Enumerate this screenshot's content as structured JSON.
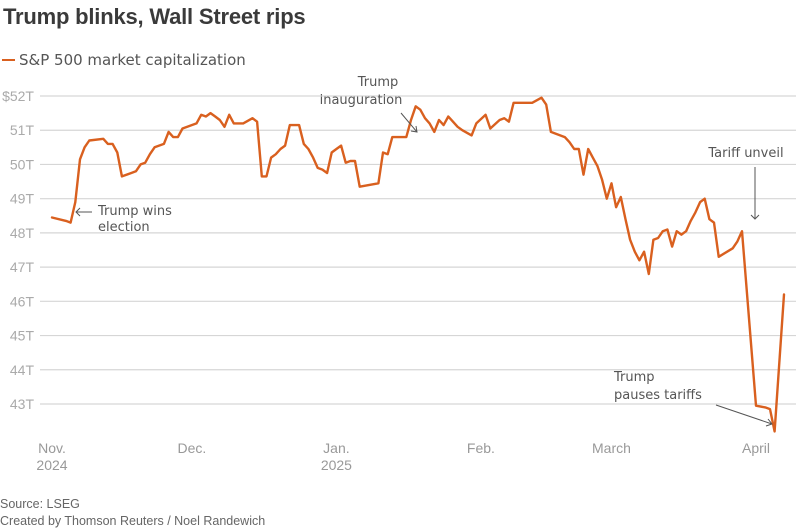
{
  "chart_data": {
    "type": "line",
    "title": "Trump blinks, Wall Street rips",
    "legend": [
      {
        "name": "S&P 500 market capitalization",
        "color": "#d9601f"
      }
    ],
    "legend_position": "top-left",
    "xlabel": "",
    "ylabel": "",
    "grid": true,
    "ylim": [
      42.3,
      52.2
    ],
    "yticks": [
      {
        "value": 52,
        "label": "$52T"
      },
      {
        "value": 51,
        "label": "51T"
      },
      {
        "value": 50,
        "label": "50T"
      },
      {
        "value": 49,
        "label": "49T"
      },
      {
        "value": 48,
        "label": "48T"
      },
      {
        "value": 47,
        "label": "47T"
      },
      {
        "value": 46,
        "label": "46T"
      },
      {
        "value": 45,
        "label": "45T"
      },
      {
        "value": 44,
        "label": "44T"
      },
      {
        "value": 43,
        "label": "43T"
      }
    ],
    "x_unit": "days since Nov. 1, 2024",
    "xlim": [
      -2,
      162
    ],
    "xticks": [
      {
        "value": 0,
        "label": [
          "Nov.",
          "2024"
        ]
      },
      {
        "value": 30,
        "label": [
          "Dec."
        ]
      },
      {
        "value": 61,
        "label": [
          "Jan.",
          "2025"
        ]
      },
      {
        "value": 92,
        "label": [
          "Feb."
        ]
      },
      {
        "value": 120,
        "label": [
          "March"
        ]
      },
      {
        "value": 151,
        "label": [
          "April"
        ]
      }
    ],
    "series": [
      {
        "name": "S&P 500 market capitalization",
        "color": "#d9601f",
        "points": [
          [
            0,
            48.45
          ],
          [
            3,
            48.35
          ],
          [
            4,
            48.3
          ],
          [
            5,
            48.9
          ],
          [
            6,
            50.15
          ],
          [
            7,
            50.5
          ],
          [
            8,
            50.7
          ],
          [
            11,
            50.75
          ],
          [
            12,
            50.6
          ],
          [
            13,
            50.6
          ],
          [
            14,
            50.35
          ],
          [
            15,
            49.65
          ],
          [
            17,
            49.75
          ],
          [
            18,
            49.8
          ],
          [
            19,
            50.0
          ],
          [
            20,
            50.05
          ],
          [
            21,
            50.3
          ],
          [
            22,
            50.5
          ],
          [
            24,
            50.6
          ],
          [
            25,
            50.95
          ],
          [
            26,
            50.8
          ],
          [
            27,
            50.8
          ],
          [
            28,
            51.05
          ],
          [
            31,
            51.2
          ],
          [
            32,
            51.45
          ],
          [
            33,
            51.4
          ],
          [
            34,
            51.5
          ],
          [
            35,
            51.4
          ],
          [
            36,
            51.3
          ],
          [
            37,
            51.1
          ],
          [
            38,
            51.45
          ],
          [
            39,
            51.2
          ],
          [
            41,
            51.2
          ],
          [
            43,
            51.35
          ],
          [
            44,
            51.25
          ],
          [
            45,
            49.65
          ],
          [
            46,
            49.65
          ],
          [
            47,
            50.2
          ],
          [
            48,
            50.3
          ],
          [
            49,
            50.45
          ],
          [
            50,
            50.55
          ],
          [
            51,
            51.15
          ],
          [
            53,
            51.15
          ],
          [
            54,
            50.6
          ],
          [
            55,
            50.45
          ],
          [
            56,
            50.2
          ],
          [
            57,
            49.9
          ],
          [
            58,
            49.85
          ],
          [
            59,
            49.75
          ],
          [
            60,
            50.35
          ],
          [
            61,
            50.45
          ],
          [
            62,
            50.55
          ],
          [
            63,
            50.05
          ],
          [
            64,
            50.1
          ],
          [
            65,
            50.1
          ],
          [
            66,
            49.35
          ],
          [
            70,
            49.45
          ],
          [
            71,
            50.35
          ],
          [
            72,
            50.3
          ],
          [
            73,
            50.8
          ],
          [
            76,
            50.8
          ],
          [
            77,
            51.3
          ],
          [
            78,
            51.7
          ],
          [
            79,
            51.6
          ],
          [
            80,
            51.35
          ],
          [
            81,
            51.2
          ],
          [
            82,
            50.95
          ],
          [
            83,
            51.3
          ],
          [
            84,
            51.15
          ],
          [
            85,
            51.4
          ],
          [
            86,
            51.25
          ],
          [
            87,
            51.1
          ],
          [
            88,
            51.0
          ],
          [
            90,
            50.85
          ],
          [
            91,
            51.2
          ],
          [
            93,
            51.45
          ],
          [
            94,
            51.05
          ],
          [
            96,
            51.3
          ],
          [
            97,
            51.35
          ],
          [
            98,
            51.25
          ],
          [
            99,
            51.8
          ],
          [
            103,
            51.8
          ],
          [
            105,
            51.95
          ],
          [
            106,
            51.75
          ],
          [
            107,
            50.95
          ],
          [
            108,
            50.9
          ],
          [
            110,
            50.8
          ],
          [
            111,
            50.65
          ],
          [
            112,
            50.45
          ],
          [
            113,
            50.45
          ],
          [
            114,
            49.7
          ],
          [
            115,
            50.45
          ],
          [
            116,
            50.2
          ],
          [
            117,
            49.95
          ],
          [
            118,
            49.55
          ],
          [
            119,
            49.0
          ],
          [
            120,
            49.45
          ],
          [
            121,
            48.75
          ],
          [
            122,
            49.05
          ],
          [
            123,
            48.4
          ],
          [
            124,
            47.8
          ],
          [
            125,
            47.45
          ],
          [
            126,
            47.2
          ],
          [
            127,
            47.45
          ],
          [
            128,
            46.8
          ],
          [
            129,
            47.8
          ],
          [
            130,
            47.85
          ],
          [
            131,
            48.05
          ],
          [
            132,
            48.1
          ],
          [
            133,
            47.6
          ],
          [
            134,
            48.05
          ],
          [
            135,
            47.95
          ],
          [
            136,
            48.05
          ],
          [
            137,
            48.35
          ],
          [
            138,
            48.6
          ],
          [
            139,
            48.9
          ],
          [
            140,
            49.0
          ],
          [
            141,
            48.4
          ],
          [
            142,
            48.3
          ],
          [
            143,
            47.3
          ],
          [
            146,
            47.55
          ],
          [
            147,
            47.75
          ],
          [
            148,
            48.05
          ],
          [
            151,
            42.95
          ],
          [
            153,
            42.9
          ],
          [
            154,
            42.85
          ],
          [
            155,
            42.2
          ],
          [
            157,
            46.2
          ]
        ]
      }
    ],
    "annotations": [
      {
        "text": [
          "Trump wins",
          "election"
        ],
        "x": 5,
        "value": 48.45
      },
      {
        "text": [
          "Trump",
          "inauguration"
        ],
        "x": 80,
        "value": 50.85
      },
      {
        "text": [
          "Tariff unveil"
        ],
        "x": 148,
        "value": 48.05
      },
      {
        "text": [
          "Trump",
          "pauses tariffs"
        ],
        "x": 155,
        "value": 42.6
      }
    ]
  },
  "header": {
    "title": "Trump blinks, Wall Street rips",
    "legend_label": "S&P 500 market capitalization"
  },
  "footer": {
    "source": "Source: LSEG",
    "credit": "Created by Thomson Reuters / Noel Randewich"
  }
}
